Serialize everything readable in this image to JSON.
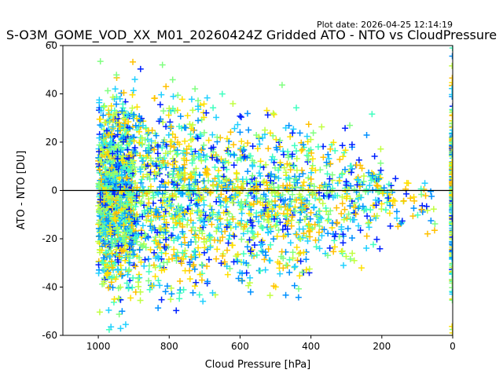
{
  "plot_date": "Plot date: 2026-04-25 12:14:19",
  "chart_data": {
    "type": "scatter",
    "title": "S-O3M_GOME_VOD_XX_M01_20260424Z Gridded ATO - NTO vs CloudPressure",
    "xlabel": "Cloud Pressure [hPa]",
    "ylabel": "ATO - NTO [DU]",
    "xlim": [
      1100,
      0
    ],
    "ylim": [
      -60,
      60
    ],
    "x_ticks": [
      1000,
      800,
      600,
      400,
      200,
      0
    ],
    "y_ticks": [
      -60,
      -40,
      -20,
      0,
      20,
      40,
      60
    ],
    "x_axis_inverted": true,
    "reference_line": {
      "y": 0,
      "color": "#000000"
    },
    "marker": "+",
    "grid": false,
    "legend": "none",
    "point_colors": [
      "#80ff80",
      "#40ffc0",
      "#20d0ff",
      "#0090ff",
      "#0020ff",
      "#ffe000",
      "#ffc000",
      "#c0ff40"
    ],
    "clusters": [
      {
        "x_range": [
          1000,
          900
        ],
        "y_mean": -2,
        "y_spread": 45,
        "density": "very high"
      },
      {
        "x_range": [
          900,
          700
        ],
        "y_mean": -2,
        "y_spread": 45,
        "density": "high"
      },
      {
        "x_range": [
          700,
          400
        ],
        "y_mean": -3,
        "y_spread": 40,
        "density": "high"
      },
      {
        "x_range": [
          400,
          200
        ],
        "y_mean": -3,
        "y_spread": 30,
        "density": "medium"
      },
      {
        "x_range": [
          200,
          50
        ],
        "y_mean": -5,
        "y_spread": 15,
        "density": "low"
      },
      {
        "x_range": [
          2,
          0
        ],
        "y_mean": 0,
        "y_spread": 55,
        "density": "medium"
      }
    ]
  }
}
